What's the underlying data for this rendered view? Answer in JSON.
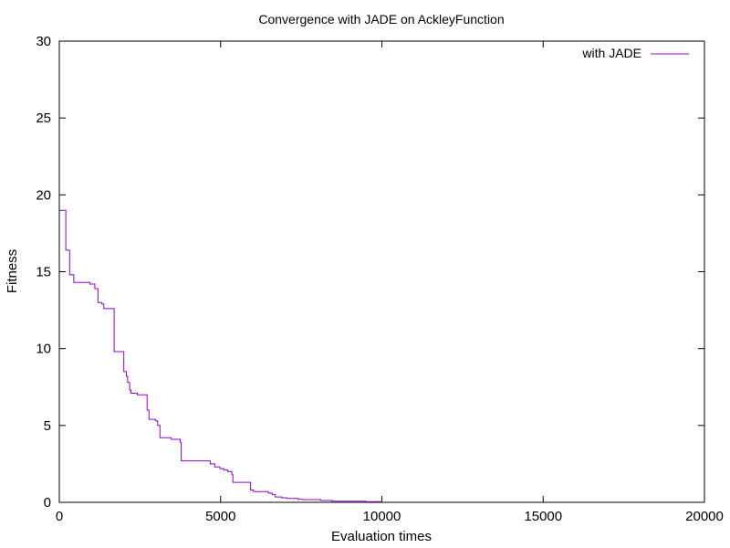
{
  "chart_data": {
    "type": "line",
    "title": "Convergence with JADE on AckleyFunction",
    "xlabel": "Evaluation times",
    "ylabel": "Fitness",
    "xlim": [
      0,
      20000
    ],
    "ylim": [
      0,
      30
    ],
    "xticks": [
      0,
      5000,
      10000,
      15000,
      20000
    ],
    "yticks": [
      0,
      5,
      10,
      15,
      20,
      25,
      30
    ],
    "grid": false,
    "legend_position": "top-right",
    "colors": {
      "series": "#9400d3",
      "axis": "#000000",
      "background": "#ffffff"
    },
    "series": [
      {
        "name": "with JADE",
        "step": true,
        "x": [
          0,
          200,
          320,
          450,
          950,
          1100,
          1200,
          1320,
          1380,
          1700,
          2000,
          2080,
          2120,
          2180,
          2220,
          2420,
          2720,
          2780,
          2980,
          3050,
          3120,
          3470,
          3750,
          3780,
          4680,
          4820,
          4980,
          5100,
          5220,
          5350,
          5380,
          5780,
          5930,
          6020,
          6480,
          6600,
          6700,
          6900,
          7050,
          7400,
          7550,
          8100,
          8450,
          9500,
          10000
        ],
        "y": [
          19.0,
          16.4,
          14.8,
          14.3,
          14.2,
          13.9,
          13.0,
          12.9,
          12.6,
          9.8,
          8.5,
          8.2,
          7.8,
          7.3,
          7.1,
          7.0,
          6.0,
          5.4,
          5.3,
          5.0,
          4.2,
          4.1,
          3.9,
          2.7,
          2.5,
          2.3,
          2.2,
          2.1,
          2.0,
          1.8,
          1.3,
          1.3,
          0.8,
          0.7,
          0.6,
          0.5,
          0.35,
          0.3,
          0.25,
          0.2,
          0.18,
          0.12,
          0.08,
          0.04,
          0.02
        ]
      }
    ]
  }
}
